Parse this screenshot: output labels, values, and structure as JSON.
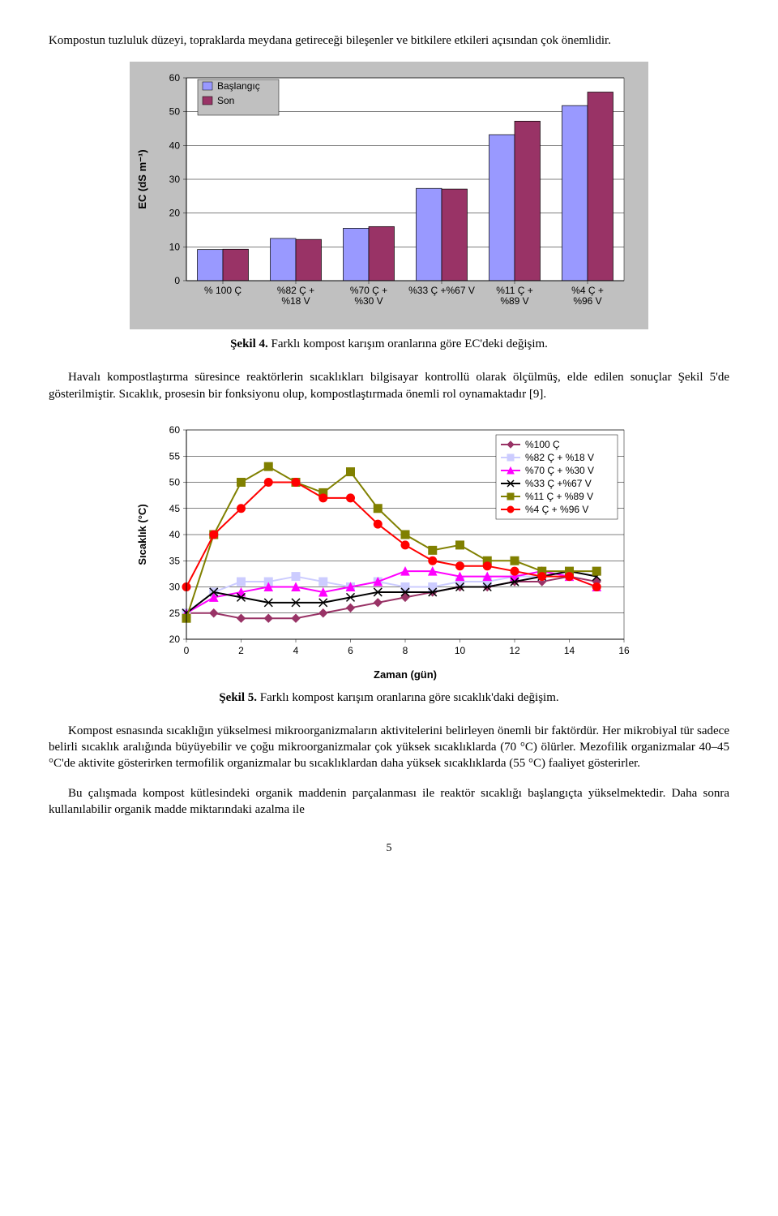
{
  "para_intro": "Kompostun tuzluluk düzeyi, topraklarda meydana getireceği bileşenler ve bitkilere etkileri açısından çok önemlidir.",
  "fig4_caption_label": "Şekil 4.",
  "fig4_caption_text": " Farklı kompost karışım oranlarına göre EC'deki değişim.",
  "para_after_fig4": "Havalı kompostlaştırma süresince reaktörlerin sıcaklıkları bilgisayar kontrollü olarak ölçülmüş, elde edilen sonuçlar Şekil 5'de gösterilmiştir. Sıcaklık, prosesin bir fonksiyonu olup, kompostlaştırmada önemli rol oynamaktadır [9].",
  "fig5_caption_label": "Şekil 5.",
  "fig5_caption_text": " Farklı kompost karışım oranlarına göre sıcaklık'daki değişim.",
  "para_kompost": "Kompost esnasında sıcaklığın yükselmesi mikroorganizmaların aktivitelerini belirleyen önemli bir faktördür. Her mikrobiyal tür sadece belirli sıcaklık aralığında büyüyebilir ve çoğu mikroorganizmalar çok yüksek sıcaklıklarda (70 °C) ölürler. Mezofilik organizmalar 40–45 °C'de aktivite gösterirken termofilik organizmalar bu sıcaklıklardan daha yüksek sıcaklıklarda (55 °C) faaliyet gösterirler.",
  "para_bu": "Bu çalışmada kompost kütlesindeki organik maddenin parçalanması ile reaktör sıcaklığı başlangıçta yükselmektedir. Daha sonra kullanılabilir organik madde miktarındaki azalma ile",
  "pagenum": "5",
  "fig4": {
    "type": "bar",
    "ylabel": "EC (dS m⁻¹)",
    "ylim": [
      0,
      60
    ],
    "ytick_step": 10,
    "categories": [
      "% 100 Ç",
      "%82 Ç + %18 V",
      "%70 Ç + %30 V",
      "%33 Ç +%67 V",
      "%11 Ç + %89 V",
      "%4 Ç + %96 V"
    ],
    "series": [
      {
        "name": "Başlangıç",
        "color": "#9999ff",
        "values": [
          9.2,
          12.5,
          15.5,
          27.3,
          43.2,
          51.8
        ]
      },
      {
        "name": "Son",
        "color": "#993366",
        "values": [
          9.3,
          12.2,
          16.0,
          27.1,
          47.2,
          55.8
        ]
      }
    ],
    "background_color": "#c0c0c0",
    "grid_color": "#000000",
    "plot_bg": "#ffffff",
    "legend_bg": "#c0c0c0",
    "bar_border": "#000000",
    "axis_font": "Arial",
    "tick_fontsize": 12,
    "label_fontsize": 13,
    "bar_group_width": 0.7
  },
  "fig5": {
    "type": "line",
    "xlabel": "Zaman (gün)",
    "ylabel": "Sıcaklık (°C)",
    "xlim": [
      0,
      16
    ],
    "xtick_step": 2,
    "ylim": [
      20,
      60
    ],
    "ytick_step": 5,
    "x": [
      0,
      1,
      2,
      3,
      4,
      5,
      6,
      7,
      8,
      9,
      10,
      11,
      12,
      13,
      14,
      15
    ],
    "series": [
      {
        "name": "%100 Ç",
        "color": "#993366",
        "marker": "diamond",
        "values": [
          25,
          25,
          24,
          24,
          24,
          25,
          26,
          27,
          28,
          29,
          30,
          30,
          31,
          31,
          32,
          31
        ]
      },
      {
        "name": "%82 Ç + %18 V",
        "color": "#ccccff",
        "marker": "square",
        "values": [
          25,
          29,
          31,
          31,
          32,
          31,
          30,
          31,
          30,
          30,
          31,
          31,
          32,
          32,
          33,
          33
        ]
      },
      {
        "name": "%70 Ç + %30 V",
        "color": "#ff00ff",
        "marker": "triangle",
        "values": [
          25,
          28,
          29,
          30,
          30,
          29,
          30,
          31,
          33,
          33,
          32,
          32,
          32,
          33,
          32,
          30
        ]
      },
      {
        "name": "%33 Ç +%67 V",
        "color": "#000000",
        "marker": "x",
        "values": [
          25,
          29,
          28,
          27,
          27,
          27,
          28,
          29,
          29,
          29,
          30,
          30,
          31,
          32,
          33,
          32
        ]
      },
      {
        "name": "%11 Ç + %89 V",
        "color": "#808000",
        "marker": "square",
        "values": [
          24,
          40,
          50,
          53,
          50,
          48,
          52,
          45,
          40,
          37,
          38,
          35,
          35,
          33,
          33,
          33
        ]
      },
      {
        "name": "%4 Ç + %96 V",
        "color": "#ff0000",
        "marker": "circle",
        "values": [
          30,
          40,
          45,
          50,
          50,
          47,
          47,
          42,
          38,
          35,
          34,
          34,
          33,
          32,
          32,
          30
        ]
      }
    ],
    "background_color": "#ffffff",
    "grid_color": "#000000",
    "plot_bg": "#ffffff",
    "legend_bg": "#ffffff",
    "axis_font": "Arial",
    "tick_fontsize": 12,
    "label_fontsize": 13,
    "line_width": 2,
    "marker_size": 5
  }
}
